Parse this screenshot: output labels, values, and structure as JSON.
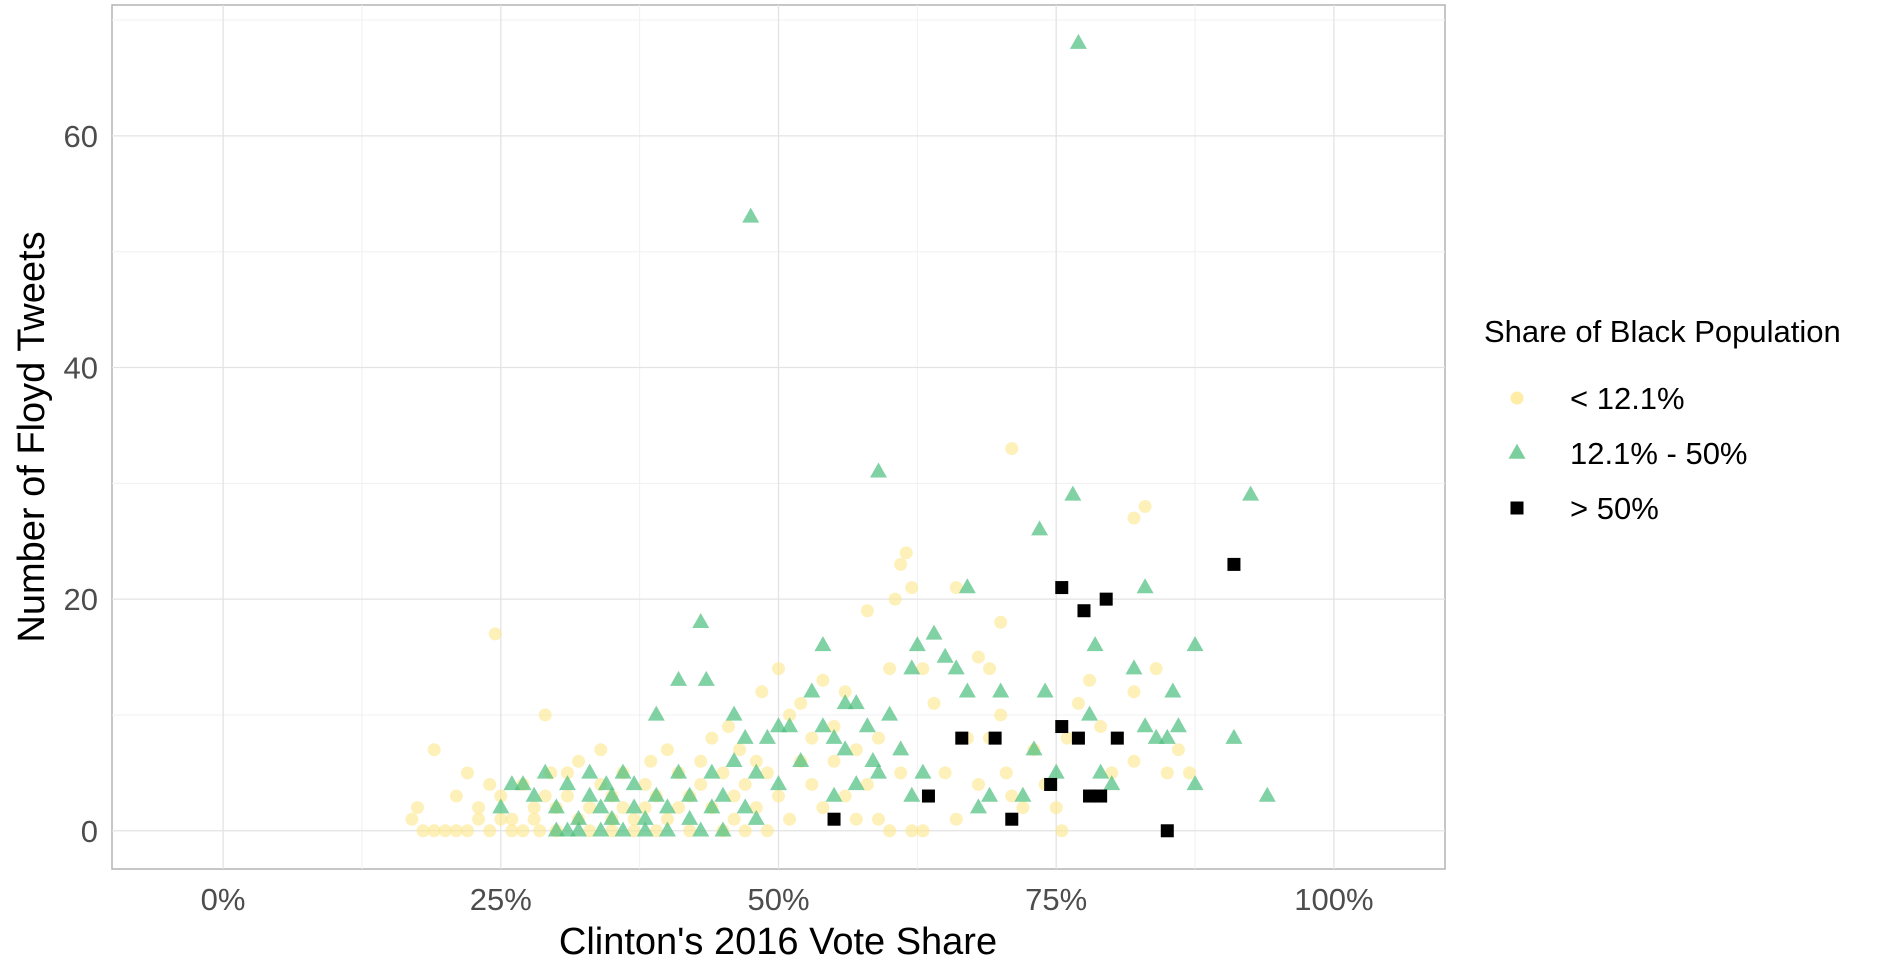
{
  "chart_data": {
    "type": "scatter",
    "xlabel": "Clinton's 2016 Vote Share",
    "ylabel": "Number of Floyd Tweets",
    "xlim": [
      -0.1,
      1.1
    ],
    "ylim": [
      -3.3,
      71.3
    ],
    "x_ticks": [
      0,
      0.25,
      0.5,
      0.75,
      1.0
    ],
    "x_tick_labels": [
      "0%",
      "25%",
      "50%",
      "75%",
      "100%"
    ],
    "y_ticks": [
      0,
      20,
      40,
      60
    ],
    "y_tick_labels": [
      "0",
      "20",
      "40",
      "60"
    ],
    "grid": true,
    "legend": {
      "title": "Share of Black Population",
      "placement": "right",
      "entries": [
        "< 12.1%",
        "12.1% - 50%",
        "> 50%"
      ]
    },
    "series": [
      {
        "name": "< 12.1%",
        "shape": "circle",
        "color": "#fde68a",
        "points": [
          [
            0.17,
            1
          ],
          [
            0.175,
            2
          ],
          [
            0.18,
            0
          ],
          [
            0.19,
            7
          ],
          [
            0.19,
            0
          ],
          [
            0.2,
            0
          ],
          [
            0.21,
            3
          ],
          [
            0.21,
            0
          ],
          [
            0.22,
            5
          ],
          [
            0.22,
            0
          ],
          [
            0.23,
            1
          ],
          [
            0.23,
            2
          ],
          [
            0.24,
            4
          ],
          [
            0.24,
            0
          ],
          [
            0.245,
            17
          ],
          [
            0.25,
            1
          ],
          [
            0.25,
            3
          ],
          [
            0.26,
            0
          ],
          [
            0.26,
            1
          ],
          [
            0.27,
            4
          ],
          [
            0.27,
            0
          ],
          [
            0.28,
            1
          ],
          [
            0.28,
            2
          ],
          [
            0.285,
            0
          ],
          [
            0.29,
            10
          ],
          [
            0.29,
            3
          ],
          [
            0.295,
            5
          ],
          [
            0.3,
            0
          ],
          [
            0.3,
            2
          ],
          [
            0.31,
            5
          ],
          [
            0.31,
            3
          ],
          [
            0.32,
            1
          ],
          [
            0.32,
            6
          ],
          [
            0.33,
            0
          ],
          [
            0.33,
            2
          ],
          [
            0.34,
            7
          ],
          [
            0.34,
            4
          ],
          [
            0.35,
            0
          ],
          [
            0.35,
            1
          ],
          [
            0.35,
            3
          ],
          [
            0.36,
            2
          ],
          [
            0.36,
            5
          ],
          [
            0.37,
            0
          ],
          [
            0.37,
            1
          ],
          [
            0.38,
            2
          ],
          [
            0.38,
            4
          ],
          [
            0.385,
            6
          ],
          [
            0.39,
            0
          ],
          [
            0.39,
            3
          ],
          [
            0.4,
            7
          ],
          [
            0.4,
            1
          ],
          [
            0.41,
            2
          ],
          [
            0.41,
            5
          ],
          [
            0.42,
            0
          ],
          [
            0.42,
            3
          ],
          [
            0.43,
            4
          ],
          [
            0.43,
            6
          ],
          [
            0.44,
            8
          ],
          [
            0.44,
            2
          ],
          [
            0.45,
            0
          ],
          [
            0.45,
            5
          ],
          [
            0.455,
            9
          ],
          [
            0.46,
            1
          ],
          [
            0.46,
            3
          ],
          [
            0.465,
            7
          ],
          [
            0.47,
            4
          ],
          [
            0.47,
            0
          ],
          [
            0.48,
            2
          ],
          [
            0.48,
            6
          ],
          [
            0.485,
            12
          ],
          [
            0.49,
            0
          ],
          [
            0.49,
            5
          ],
          [
            0.5,
            14
          ],
          [
            0.5,
            3
          ],
          [
            0.51,
            10
          ],
          [
            0.51,
            1
          ],
          [
            0.52,
            11
          ],
          [
            0.52,
            6
          ],
          [
            0.53,
            4
          ],
          [
            0.53,
            8
          ],
          [
            0.54,
            13
          ],
          [
            0.54,
            2
          ],
          [
            0.55,
            9
          ],
          [
            0.55,
            6
          ],
          [
            0.56,
            12
          ],
          [
            0.56,
            3
          ],
          [
            0.57,
            1
          ],
          [
            0.57,
            7
          ],
          [
            0.58,
            19
          ],
          [
            0.58,
            4
          ],
          [
            0.59,
            1
          ],
          [
            0.59,
            8
          ],
          [
            0.6,
            14
          ],
          [
            0.6,
            0
          ],
          [
            0.605,
            20
          ],
          [
            0.61,
            23
          ],
          [
            0.61,
            5
          ],
          [
            0.615,
            24
          ],
          [
            0.62,
            21
          ],
          [
            0.62,
            0
          ],
          [
            0.63,
            0
          ],
          [
            0.63,
            14
          ],
          [
            0.64,
            11
          ],
          [
            0.65,
            5
          ],
          [
            0.66,
            21
          ],
          [
            0.66,
            1
          ],
          [
            0.67,
            8
          ],
          [
            0.68,
            15
          ],
          [
            0.68,
            4
          ],
          [
            0.69,
            14
          ],
          [
            0.69,
            8
          ],
          [
            0.7,
            18
          ],
          [
            0.7,
            10
          ],
          [
            0.705,
            5
          ],
          [
            0.71,
            33
          ],
          [
            0.71,
            3
          ],
          [
            0.72,
            2
          ],
          [
            0.73,
            7
          ],
          [
            0.74,
            4
          ],
          [
            0.75,
            2
          ],
          [
            0.755,
            0
          ],
          [
            0.76,
            8
          ],
          [
            0.77,
            11
          ],
          [
            0.78,
            13
          ],
          [
            0.79,
            9
          ],
          [
            0.8,
            5
          ],
          [
            0.82,
            27
          ],
          [
            0.82,
            12
          ],
          [
            0.82,
            6
          ],
          [
            0.83,
            28
          ],
          [
            0.84,
            14
          ],
          [
            0.85,
            5
          ],
          [
            0.86,
            7
          ],
          [
            0.87,
            5
          ]
        ]
      },
      {
        "name": "12.1% - 50%",
        "shape": "triangle",
        "color": "#4fbf7f",
        "points": [
          [
            0.25,
            2
          ],
          [
            0.26,
            4
          ],
          [
            0.27,
            4
          ],
          [
            0.28,
            3
          ],
          [
            0.29,
            5
          ],
          [
            0.3,
            2
          ],
          [
            0.3,
            0
          ],
          [
            0.31,
            0
          ],
          [
            0.31,
            4
          ],
          [
            0.32,
            1
          ],
          [
            0.32,
            0
          ],
          [
            0.33,
            3
          ],
          [
            0.33,
            5
          ],
          [
            0.34,
            2
          ],
          [
            0.34,
            0
          ],
          [
            0.345,
            4
          ],
          [
            0.35,
            1
          ],
          [
            0.35,
            3
          ],
          [
            0.36,
            5
          ],
          [
            0.36,
            0
          ],
          [
            0.37,
            4
          ],
          [
            0.37,
            2
          ],
          [
            0.38,
            1
          ],
          [
            0.38,
            0
          ],
          [
            0.39,
            3
          ],
          [
            0.39,
            10
          ],
          [
            0.4,
            0
          ],
          [
            0.4,
            2
          ],
          [
            0.41,
            5
          ],
          [
            0.41,
            13
          ],
          [
            0.42,
            1
          ],
          [
            0.42,
            3
          ],
          [
            0.43,
            18
          ],
          [
            0.43,
            0
          ],
          [
            0.435,
            13
          ],
          [
            0.44,
            2
          ],
          [
            0.44,
            5
          ],
          [
            0.45,
            0
          ],
          [
            0.45,
            3
          ],
          [
            0.46,
            10
          ],
          [
            0.46,
            6
          ],
          [
            0.47,
            8
          ],
          [
            0.47,
            2
          ],
          [
            0.475,
            53
          ],
          [
            0.48,
            5
          ],
          [
            0.48,
            1
          ],
          [
            0.49,
            8
          ],
          [
            0.5,
            9
          ],
          [
            0.5,
            4
          ],
          [
            0.51,
            9
          ],
          [
            0.52,
            6
          ],
          [
            0.53,
            12
          ],
          [
            0.54,
            16
          ],
          [
            0.54,
            9
          ],
          [
            0.55,
            8
          ],
          [
            0.55,
            3
          ],
          [
            0.56,
            11
          ],
          [
            0.56,
            7
          ],
          [
            0.57,
            11
          ],
          [
            0.57,
            4
          ],
          [
            0.58,
            9
          ],
          [
            0.585,
            6
          ],
          [
            0.59,
            31
          ],
          [
            0.59,
            5
          ],
          [
            0.6,
            10
          ],
          [
            0.61,
            7
          ],
          [
            0.62,
            14
          ],
          [
            0.62,
            3
          ],
          [
            0.625,
            16
          ],
          [
            0.63,
            5
          ],
          [
            0.64,
            17
          ],
          [
            0.65,
            15
          ],
          [
            0.66,
            14
          ],
          [
            0.67,
            21
          ],
          [
            0.67,
            12
          ],
          [
            0.68,
            2
          ],
          [
            0.69,
            3
          ],
          [
            0.7,
            12
          ],
          [
            0.72,
            3
          ],
          [
            0.73,
            7
          ],
          [
            0.735,
            26
          ],
          [
            0.74,
            12
          ],
          [
            0.75,
            5
          ],
          [
            0.765,
            29
          ],
          [
            0.77,
            68
          ],
          [
            0.78,
            10
          ],
          [
            0.785,
            16
          ],
          [
            0.79,
            5
          ],
          [
            0.8,
            4
          ],
          [
            0.82,
            14
          ],
          [
            0.83,
            21
          ],
          [
            0.83,
            9
          ],
          [
            0.84,
            8
          ],
          [
            0.85,
            8
          ],
          [
            0.855,
            12
          ],
          [
            0.86,
            9
          ],
          [
            0.875,
            16
          ],
          [
            0.875,
            4
          ],
          [
            0.91,
            8
          ],
          [
            0.925,
            29
          ],
          [
            0.94,
            3
          ]
        ]
      },
      {
        "name": "> 50%",
        "shape": "square",
        "color": "#000000",
        "points": [
          [
            0.55,
            1
          ],
          [
            0.635,
            3
          ],
          [
            0.665,
            8
          ],
          [
            0.695,
            8
          ],
          [
            0.71,
            1
          ],
          [
            0.745,
            4
          ],
          [
            0.755,
            21
          ],
          [
            0.755,
            9
          ],
          [
            0.77,
            8
          ],
          [
            0.775,
            19
          ],
          [
            0.78,
            3
          ],
          [
            0.79,
            3
          ],
          [
            0.795,
            20
          ],
          [
            0.805,
            8
          ],
          [
            0.85,
            0
          ],
          [
            0.91,
            23
          ]
        ]
      }
    ]
  }
}
